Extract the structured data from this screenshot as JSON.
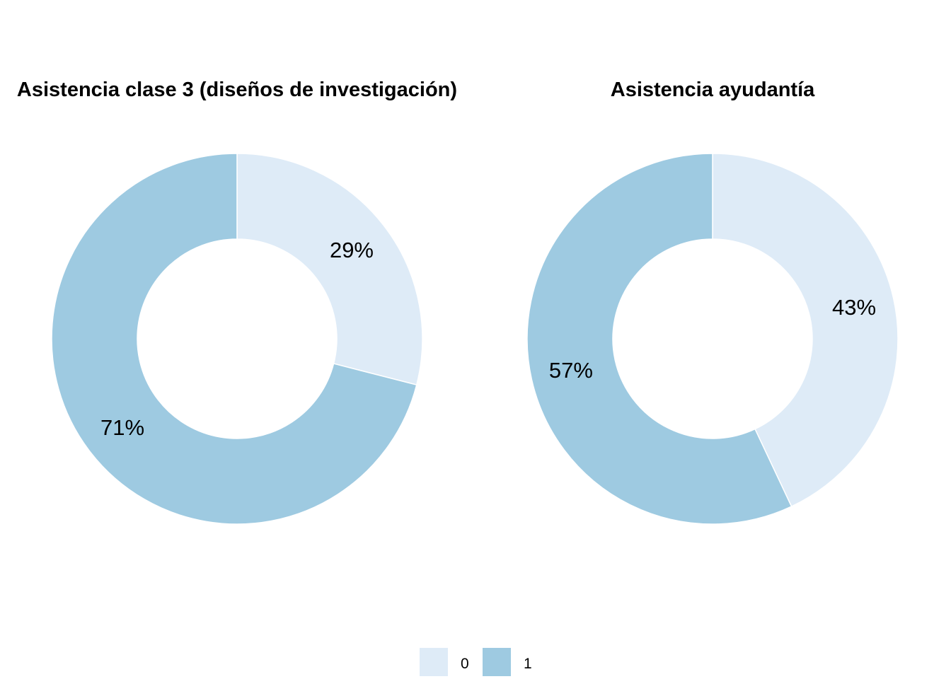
{
  "colors": {
    "0": "#deebf7",
    "1": "#9ecae1"
  },
  "legend": {
    "placement": "bottom",
    "entries": [
      {
        "key": "0",
        "label": "0"
      },
      {
        "key": "1",
        "label": "1"
      }
    ]
  },
  "chart_data": [
    {
      "type": "pie",
      "title": "Asistencia clase 3 (diseños de investigación)",
      "slices": [
        {
          "category": "0",
          "value": 29,
          "label": "29%"
        },
        {
          "category": "1",
          "value": 71,
          "label": "71%"
        }
      ]
    },
    {
      "type": "pie",
      "title": "Asistencia ayudantía",
      "slices": [
        {
          "category": "0",
          "value": 43,
          "label": "43%"
        },
        {
          "category": "1",
          "value": 57,
          "label": "57%"
        }
      ]
    }
  ]
}
